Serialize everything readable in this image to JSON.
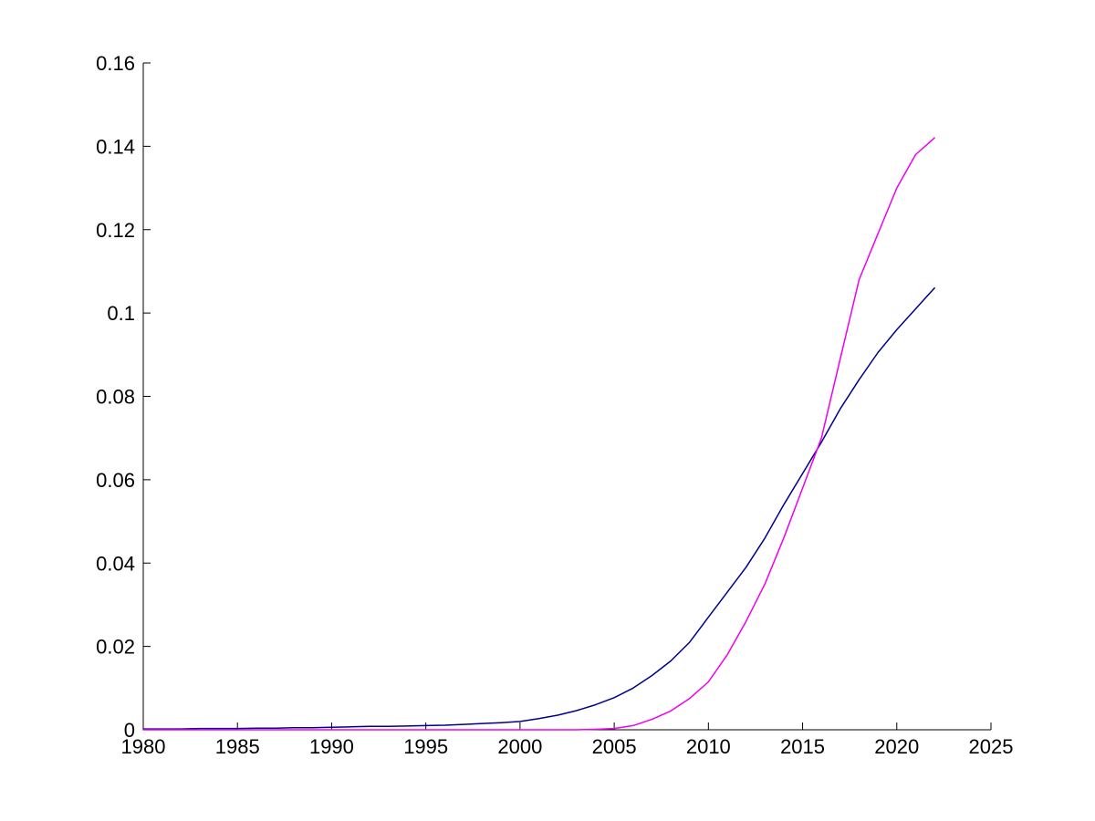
{
  "figure": {
    "background": "#ffffff",
    "axis_color": "#000000"
  },
  "chart_data": {
    "type": "line",
    "title": "",
    "xlabel": "",
    "ylabel": "",
    "xlim": [
      1980,
      2025
    ],
    "ylim": [
      0,
      0.16
    ],
    "grid": false,
    "legend": "none",
    "x_tick_labels": [
      "1980",
      "1985",
      "1990",
      "1995",
      "2000",
      "2005",
      "2010",
      "2015",
      "2020",
      "2025"
    ],
    "x_tick_values": [
      1980,
      1985,
      1990,
      1995,
      2000,
      2005,
      2010,
      2015,
      2020,
      2025
    ],
    "y_tick_labels": [
      "0",
      "0.02",
      "0.04",
      "0.06",
      "0.08",
      "0.1",
      "0.12",
      "0.14",
      "0.16"
    ],
    "y_tick_values": [
      0,
      0.02,
      0.04,
      0.06,
      0.08,
      0.1,
      0.12,
      0.14,
      0.16
    ],
    "x": [
      1980,
      1981,
      1982,
      1983,
      1984,
      1985,
      1986,
      1987,
      1988,
      1989,
      1990,
      1991,
      1992,
      1993,
      1994,
      1995,
      1996,
      1997,
      1998,
      1999,
      2000,
      2001,
      2002,
      2003,
      2004,
      2005,
      2006,
      2007,
      2008,
      2009,
      2010,
      2011,
      2012,
      2013,
      2014,
      2015,
      2016,
      2017,
      2018,
      2019,
      2020,
      2021,
      2022
    ],
    "series": [
      {
        "name": "navy-line",
        "color": "#00008B",
        "values": [
          0.0002,
          0.0002,
          0.0002,
          0.0003,
          0.0003,
          0.0003,
          0.0004,
          0.0004,
          0.0005,
          0.0005,
          0.0006,
          0.0007,
          0.0008,
          0.0008,
          0.0009,
          0.001,
          0.0011,
          0.0013,
          0.0015,
          0.0017,
          0.002,
          0.0027,
          0.0035,
          0.0046,
          0.006,
          0.0077,
          0.01,
          0.013,
          0.0165,
          0.021,
          0.027,
          0.033,
          0.039,
          0.046,
          0.054,
          0.0615,
          0.069,
          0.077,
          0.084,
          0.0905,
          0.096,
          0.101,
          0.106
        ]
      },
      {
        "name": "magenta-line",
        "color": "#EE00EE",
        "values": [
          0,
          0,
          0,
          0,
          0,
          0,
          0,
          0,
          0,
          0,
          0,
          0,
          0,
          0,
          0,
          0,
          0,
          0,
          0,
          0,
          0,
          0,
          0,
          0,
          0.0001,
          0.0003,
          0.001,
          0.0025,
          0.0045,
          0.0075,
          0.0115,
          0.018,
          0.026,
          0.035,
          0.046,
          0.058,
          0.07,
          0.089,
          0.108,
          0.119,
          0.13,
          0.138,
          0.142
        ]
      }
    ]
  }
}
